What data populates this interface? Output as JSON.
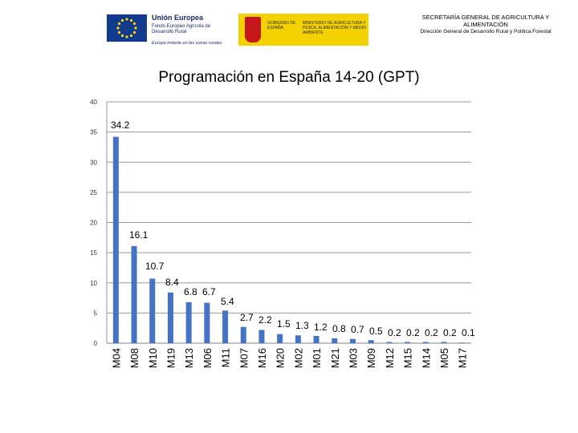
{
  "header": {
    "eu_title": "Unión Europea",
    "eu_fund": "Fondo Europeo Agrícola de Desarrollo Rural",
    "eu_motto": "Europa invierte en las zonas rurales",
    "gov_name": "GOBIERNO DE ESPAÑA",
    "ministry": "MINISTERIO DE AGRICULTURA Y PESCA, ALIMENTACIÓN Y MEDIO AMBIENTE",
    "secretaria": "SECRETARÍA GENERAL DE AGRICULTURA Y ALIMENTACIÓN",
    "direccion": "Dirección General de Desarrollo Rural y Política Forestal"
  },
  "colors": {
    "bar": "#4472c4",
    "eu_blue": "#123a8f",
    "eu_star": "#ffd700",
    "gov_yellow": "#f4d200",
    "gov_red": "#c8161d"
  },
  "chart_data": {
    "type": "bar",
    "title": "Programación en España 14-20 (GPT)",
    "categories": [
      "M04",
      "M08",
      "M10",
      "M19",
      "M13",
      "M06",
      "M11",
      "M07",
      "M16",
      "M20",
      "M02",
      "M01",
      "M21",
      "M03",
      "M09",
      "M12",
      "M15",
      "M14",
      "M05",
      "M17"
    ],
    "values": [
      34.2,
      16.1,
      10.7,
      8.4,
      6.8,
      6.7,
      5.4,
      2.7,
      2.2,
      1.5,
      1.3,
      1.2,
      0.8,
      0.7,
      0.5,
      0.2,
      0.2,
      0.2,
      0.2,
      0.1
    ],
    "labels": [
      "34.2",
      "16.1",
      "10.7",
      "8.4",
      "6.8",
      "6.7",
      "5.4",
      "2.7",
      "2.2",
      "1.5",
      "1.3",
      "1.2",
      "0.8",
      "0.7",
      "0.5",
      "0.2",
      "0.2",
      "0.2",
      "0.2",
      "0.1"
    ],
    "yticks": [
      "0",
      "5",
      "10",
      "15",
      "20",
      "25",
      "30",
      "35",
      "40"
    ],
    "ylim": [
      0,
      40
    ],
    "grid": true,
    "xlabel": "",
    "ylabel": ""
  }
}
